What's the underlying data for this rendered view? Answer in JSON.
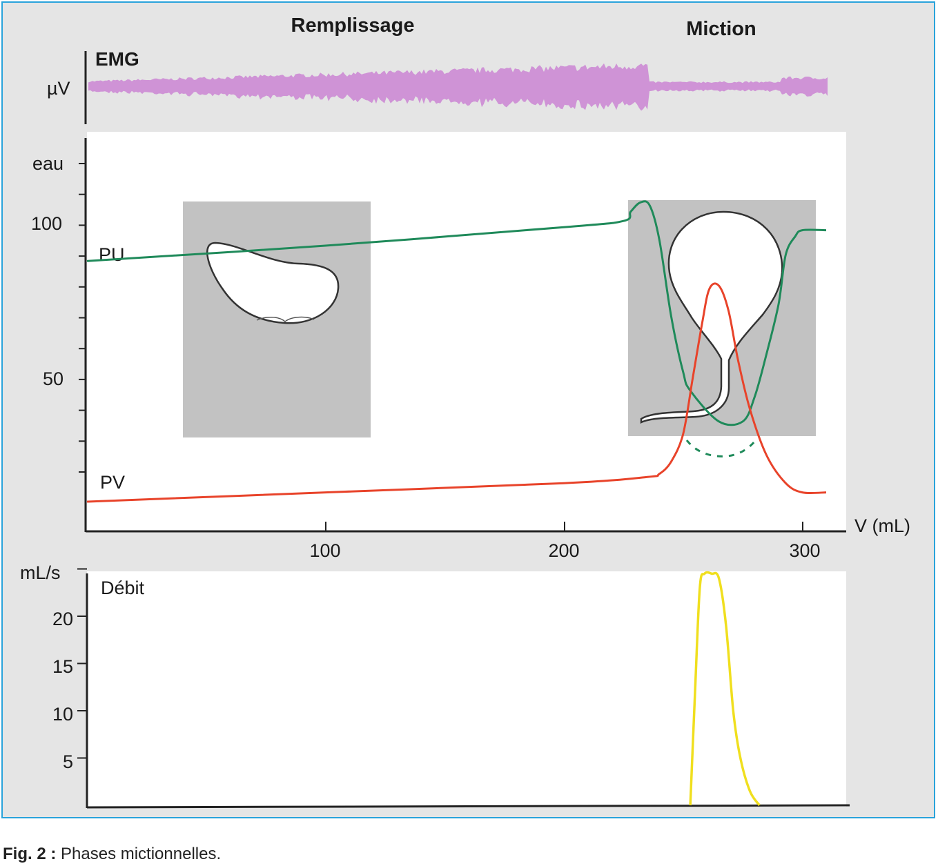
{
  "phases": {
    "filling": "Remplissage",
    "voiding": "Miction"
  },
  "emg": {
    "label": "EMG",
    "unit": "µV",
    "color": "#cf93d6"
  },
  "pressure_axis": {
    "unit": "eau",
    "ticks": [
      "100",
      "50"
    ]
  },
  "volume_axis": {
    "label": "V (mL)",
    "ticks": [
      "100",
      "200",
      "300"
    ]
  },
  "flow_axis": {
    "unit": "mL/s",
    "ticks": [
      "20",
      "15",
      "10",
      "5"
    ]
  },
  "curve_labels": {
    "pu": "PU",
    "pv": "PV",
    "flow": "Débit"
  },
  "caption": {
    "prefix": "Fig. 2 :",
    "text": " Phases mictionnelles."
  },
  "colors": {
    "pu": "#1f8a5a",
    "pv": "#e8432a",
    "flow": "#f0df1e",
    "inset": "#c2c2c2",
    "frame": "#29a3db"
  },
  "chart_data": [
    {
      "type": "line",
      "title": "",
      "xlabel": "V (mL)",
      "ylabel": "eau",
      "xlim": [
        0,
        310
      ],
      "ylim": [
        0,
        120
      ],
      "series": [
        {
          "name": "PU",
          "x": [
            0,
            100,
            200,
            225,
            228,
            232,
            236,
            240,
            245,
            250,
            253,
            265,
            275,
            280,
            285,
            290,
            293,
            297,
            300,
            310
          ],
          "y": [
            78,
            83,
            89,
            91,
            94,
            97,
            96,
            85,
            60,
            42,
            36,
            26,
            26,
            34,
            48,
            64,
            80,
            86,
            88,
            88
          ]
        },
        {
          "name": "PV",
          "x": [
            0,
            100,
            200,
            235,
            240,
            245,
            250,
            254,
            258,
            261,
            265,
            269,
            273,
            278,
            285,
            293,
            300,
            310
          ],
          "y": [
            0,
            3,
            6,
            8,
            9,
            13,
            22,
            40,
            58,
            69,
            70,
            62,
            46,
            30,
            15,
            6,
            3,
            3
          ]
        }
      ]
    },
    {
      "type": "line",
      "title": "",
      "xlabel": "V (mL)",
      "ylabel": "mL/s",
      "xlim": [
        0,
        310
      ],
      "ylim": [
        0,
        25
      ],
      "series": [
        {
          "name": "Débit",
          "x": [
            253,
            255,
            257,
            259,
            262,
            265,
            268,
            271,
            274,
            278,
            282
          ],
          "y": [
            0,
            12,
            23,
            24.5,
            24.5,
            24,
            19,
            10,
            5,
            1.5,
            0
          ]
        }
      ]
    }
  ]
}
